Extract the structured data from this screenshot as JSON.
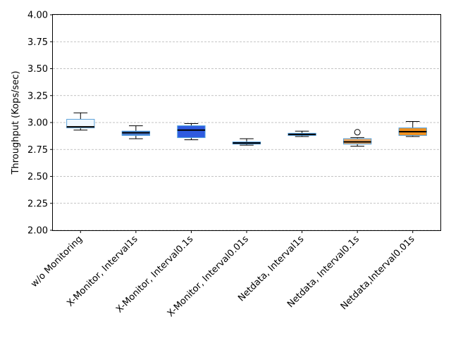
{
  "chart_data": {
    "type": "box",
    "ylabel": "Throughput (Kops/sec)",
    "xlabel": "",
    "title": "",
    "ylim": [
      2.0,
      4.0
    ],
    "yticks": [
      "2.00",
      "2.25",
      "2.50",
      "2.75",
      "3.00",
      "3.25",
      "3.50",
      "3.75",
      "4.00"
    ],
    "grid": "y-dashed",
    "median_color": "#000000",
    "categories": [
      "w/o Monitoring",
      "X-Monitor, Interval1s",
      "X-Monitor, Interval0.1s",
      "X-Monitor, Interval0.01s",
      "Netdata, Interval1s",
      "Netdata, Interval0.1s",
      "Netdata,Interval0.01s"
    ],
    "boxes": [
      {
        "whislo": 2.93,
        "q1": 2.95,
        "med": 2.96,
        "q3": 3.03,
        "whishi": 3.09,
        "fliers": [],
        "fill": "#f0f8ff",
        "edge": "#5aa0d8"
      },
      {
        "whislo": 2.85,
        "q1": 2.88,
        "med": 2.905,
        "q3": 2.92,
        "whishi": 2.97,
        "fliers": [],
        "fill": "#4d7fd0",
        "edge": "#4d9fe0"
      },
      {
        "whislo": 2.84,
        "q1": 2.86,
        "med": 2.93,
        "q3": 2.97,
        "whishi": 2.99,
        "fliers": [],
        "fill": "#2f5be0",
        "edge": "#4d9fe0"
      },
      {
        "whislo": 2.79,
        "q1": 2.8,
        "med": 2.81,
        "q3": 2.82,
        "whishi": 2.85,
        "fliers": [],
        "fill": "#1c2e7a",
        "edge": "#4d9fe0"
      },
      {
        "whislo": 2.87,
        "q1": 2.88,
        "med": 2.89,
        "q3": 2.9,
        "whishi": 2.92,
        "fliers": [],
        "fill": "#3f6bc0",
        "edge": "#4d9fe0"
      },
      {
        "whislo": 2.78,
        "q1": 2.8,
        "med": 2.82,
        "q3": 2.85,
        "whishi": 2.86,
        "fliers": [
          2.91
        ],
        "fill": "#f0a860",
        "edge": "#4d9fe0"
      },
      {
        "whislo": 2.87,
        "q1": 2.88,
        "med": 2.915,
        "q3": 2.95,
        "whishi": 3.01,
        "fliers": [],
        "fill": "#f0901e",
        "edge": "#4d9fe0"
      }
    ]
  }
}
